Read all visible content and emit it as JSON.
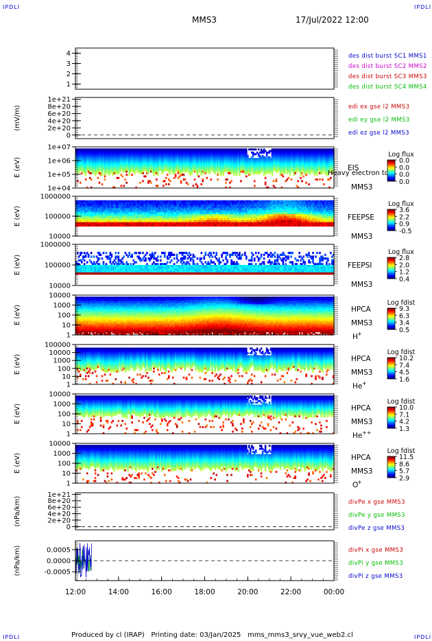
{
  "corners": {
    "top_left": "IPDLI",
    "top_right": "IPDLI",
    "bottom_left": "IPDLI",
    "bottom_right": "IPDLI"
  },
  "header": {
    "spacecraft": "MMS3",
    "datetime": "17/Jul/2022 12:00"
  },
  "footer": {
    "producer": "Produced by cl (IRAP)",
    "printing": "Printing date: 03/Jan/2025",
    "file": "mms_mms3_srvy_vue_web2.cl"
  },
  "colors": {
    "blue": "#0000cc",
    "magenta": "#cc00cc",
    "red": "#cc0000",
    "green": "#00bb00"
  },
  "chart_data": {
    "type": "heatmap",
    "time_axis": {
      "ticks": [
        "12:00",
        "14:00",
        "16:00",
        "18:00",
        "20:00",
        "22:00",
        "00:00"
      ],
      "hours": [
        12,
        24
      ]
    },
    "panels": [
      {
        "id": "burst",
        "ylabel": "",
        "yticks": [
          "4",
          "3",
          "2",
          "1"
        ],
        "ylim": [
          0.5,
          4.5
        ],
        "legend": [
          {
            "text": "des dist burst SC1 MMS1",
            "color": "#0000cc"
          },
          {
            "text": "des dist burst SC2 MMS2",
            "color": "#cc00cc"
          },
          {
            "text": "des dist burst SC3 MMS3",
            "color": "#cc0000"
          },
          {
            "text": "des dist burst SC4 MMS4",
            "color": "#00bb00"
          }
        ]
      },
      {
        "id": "edi",
        "ylabel": "(mV/m)",
        "yticks": [
          "1e+21",
          "8e+20",
          "6e+20",
          "4e+20",
          "2e+20",
          "0"
        ],
        "ylim": [
          -1e+20,
          1.05e+21
        ],
        "dashed_zero": true,
        "legend": [
          {
            "text": "edi ex gse l2 MMS3",
            "color": "#cc0000"
          },
          {
            "text": "edi ey gse l2 MMS3",
            "color": "#00bb00"
          },
          {
            "text": "edi ez gse l2 MMS3",
            "color": "#0000cc"
          }
        ]
      },
      {
        "id": "eis",
        "ylabel": "E (eV)",
        "yticks": [
          "1e+07",
          "1e+06",
          "1e+05",
          "1e+04"
        ],
        "instrument": [
          "EIS",
          "MMS3"
        ],
        "overlay_text": "Heavy electron to",
        "colorbar": {
          "title": "Log flux",
          "labels": [
            "0.0",
            "0.0",
            "0.0",
            "0.0"
          ]
        }
      },
      {
        "id": "feepse",
        "ylabel": "E (eV)",
        "yticks": [
          "1000000",
          "100000",
          "10000"
        ],
        "instrument": [
          "FEEPSE",
          "MMS3"
        ],
        "colorbar": {
          "title": "Log flux",
          "labels": [
            "3.6",
            "2.2",
            "0.9",
            "-0.5"
          ]
        }
      },
      {
        "id": "feepsi",
        "ylabel": "E (eV)",
        "yticks": [
          "1000000",
          "100000",
          "10000"
        ],
        "instrument": [
          "FEEPSI",
          "MMS3"
        ],
        "colorbar": {
          "title": "Log flux",
          "labels": [
            "2.8",
            "2.0",
            "1.2",
            "0.4"
          ]
        }
      },
      {
        "id": "hpca_h",
        "ylabel": "E (eV)",
        "yticks": [
          "10000",
          "1000",
          "100",
          "10",
          "1"
        ],
        "instrument": [
          "HPCA",
          "MMS3"
        ],
        "species": "H",
        "charge": "+",
        "colorbar": {
          "title": "Log fdist",
          "labels": [
            "9.3",
            "6.3",
            "3.4",
            "0.5"
          ]
        }
      },
      {
        "id": "hpca_he1",
        "ylabel": "E (eV)",
        "yticks": [
          "100000",
          "10000",
          "1000",
          "100",
          "10",
          "1"
        ],
        "instrument": [
          "HPCA",
          "MMS3"
        ],
        "species": "He",
        "charge": "+",
        "colorbar": {
          "title": "Log fdist",
          "labels": [
            "10.2",
            "7.4",
            "4.5",
            "1.6"
          ]
        }
      },
      {
        "id": "hpca_he2",
        "ylabel": "E (eV)",
        "yticks": [
          "10000",
          "1000",
          "100",
          "10",
          "1"
        ],
        "instrument": [
          "HPCA",
          "MMS3"
        ],
        "species": "He",
        "charge": "++",
        "colorbar": {
          "title": "Log fdist",
          "labels": [
            "10.0",
            "7.1",
            "4.2",
            "1.3"
          ]
        }
      },
      {
        "id": "hpca_o",
        "ylabel": "E (eV)",
        "yticks": [
          "10000",
          "1000",
          "100",
          "10",
          "1"
        ],
        "instrument": [
          "HPCA",
          "MMS3"
        ],
        "species": "O",
        "charge": "+",
        "colorbar": {
          "title": "Log fdist",
          "labels": [
            "11.5",
            "8.6",
            "5.7",
            "2.9"
          ]
        }
      },
      {
        "id": "divpe",
        "ylabel": "(nPa/km)",
        "yticks": [
          "1e+21",
          "8e+20",
          "6e+20",
          "4e+20",
          "2e+20",
          "0"
        ],
        "ylim": [
          -1e+20,
          1.05e+21
        ],
        "dashed_zero": true,
        "legend": [
          {
            "text": "divPe x gse MMS3",
            "color": "#cc0000"
          },
          {
            "text": "divPe y gse MMS3",
            "color": "#00bb00"
          },
          {
            "text": "divPe z gse MMS3",
            "color": "#0000cc"
          }
        ]
      },
      {
        "id": "divpi",
        "ylabel": "(nPa/km)",
        "yticks": [
          "0.0005",
          "0.0000",
          "-0.0005"
        ],
        "ylim": [
          -0.0009,
          0.0009
        ],
        "dashed_zero": true,
        "data_hours": [
          12.0,
          12.75
        ],
        "legend": [
          {
            "text": "divPi x gse MMS3",
            "color": "#cc0000"
          },
          {
            "text": "divPi y gse MMS3",
            "color": "#00bb00"
          },
          {
            "text": "divPi z gse MMS3",
            "color": "#0000cc"
          }
        ]
      }
    ]
  }
}
